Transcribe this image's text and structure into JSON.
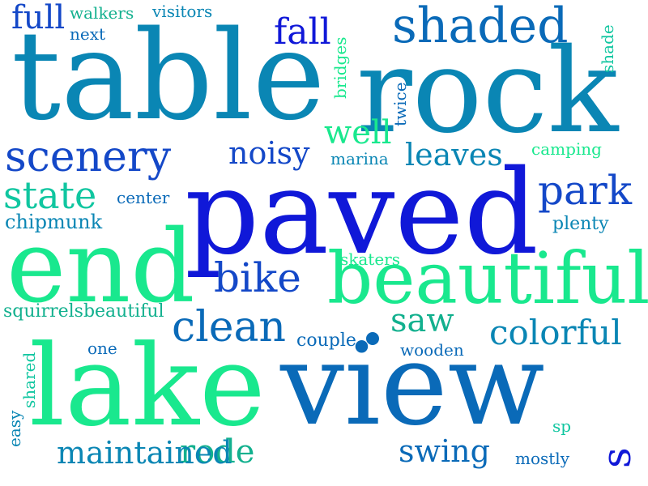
{
  "colors": {
    "deep_blue": "#1018d8",
    "teal_blue": "#0a86b4",
    "mid_blue": "#0a6ab8",
    "sea_green": "#12b08e",
    "mint": "#19e88e",
    "aqua": "#10c6a0",
    "royal": "#1448c8"
  },
  "words": [
    "table",
    "rock",
    "paved",
    "view",
    "lake",
    "end",
    "beautiful",
    "shaded",
    "scenery",
    "state",
    "park",
    "clean",
    "noisy",
    "fall",
    "full",
    "bike",
    "saw",
    "colorful",
    "rode",
    "maintained",
    "swing",
    "leaves",
    "well",
    "s",
    "chipmunk",
    "squirrelsbeautiful",
    "walkers",
    "visitors",
    "next",
    "bridges",
    "twice",
    "shade",
    "marina",
    "camping",
    "center",
    "plenty",
    "skaters",
    "couple",
    "wooden",
    "one",
    "easy",
    "shared",
    "sp",
    "mostly"
  ]
}
